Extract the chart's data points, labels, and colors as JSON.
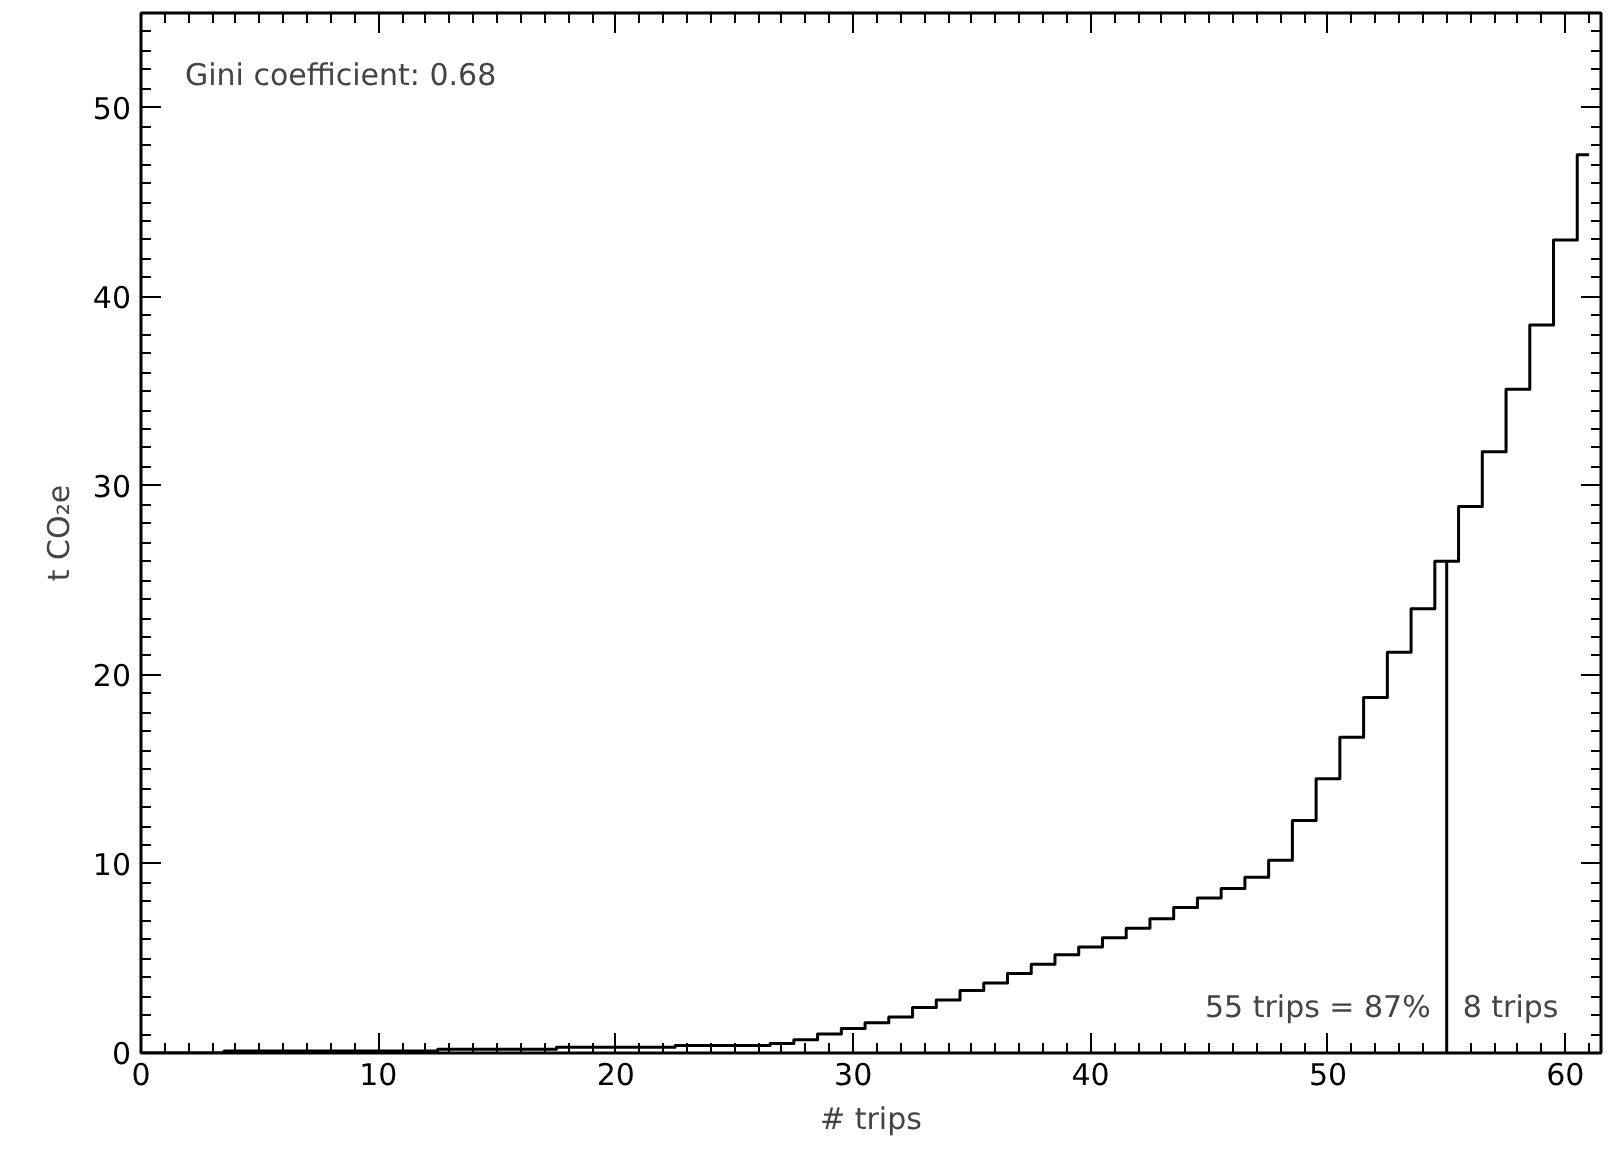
{
  "chart_data": {
    "type": "step",
    "xlabel": "# trips",
    "ylabel": "t CO₂e",
    "x": [
      0,
      1,
      2,
      3,
      4,
      5,
      6,
      7,
      8,
      9,
      10,
      11,
      12,
      13,
      14,
      15,
      16,
      17,
      18,
      19,
      20,
      21,
      22,
      23,
      24,
      25,
      26,
      27,
      28,
      29,
      30,
      31,
      32,
      33,
      34,
      35,
      36,
      37,
      38,
      39,
      40,
      41,
      42,
      43,
      44,
      45,
      46,
      47,
      48,
      49,
      50,
      51,
      52,
      53,
      54,
      55,
      56,
      57,
      58,
      59,
      60,
      61
    ],
    "series": [
      {
        "color": "#000000",
        "values": [
          0.0,
          0.0,
          0.0,
          0.0,
          0.1,
          0.1,
          0.1,
          0.1,
          0.1,
          0.1,
          0.1,
          0.1,
          0.1,
          0.2,
          0.2,
          0.2,
          0.2,
          0.2,
          0.3,
          0.3,
          0.3,
          0.3,
          0.3,
          0.4,
          0.4,
          0.4,
          0.4,
          0.5,
          0.7,
          1.0,
          1.3,
          1.6,
          1.9,
          2.4,
          2.8,
          3.3,
          3.7,
          4.2,
          4.7,
          5.2,
          5.6,
          6.1,
          6.6,
          7.1,
          7.7,
          8.2,
          8.7,
          9.3,
          10.2,
          12.3,
          14.5,
          16.7,
          18.8,
          21.2,
          23.5,
          26.0,
          28.9,
          31.8,
          35.1,
          38.5,
          43.0,
          47.5
        ]
      }
    ],
    "xlim": [
      0,
      61.5
    ],
    "ylim": [
      0,
      55
    ],
    "xticks": [
      0,
      10,
      20,
      30,
      40,
      50,
      60
    ],
    "yticks": [
      0,
      10,
      20,
      30,
      40,
      50
    ],
    "ref_lines": [
      {
        "axis": "x",
        "value": 55,
        "color": "#000000"
      }
    ],
    "annotations": [
      "Gini coefficient: 0.68",
      "55 trips = 87%",
      "8 trips"
    ],
    "grid": false
  }
}
